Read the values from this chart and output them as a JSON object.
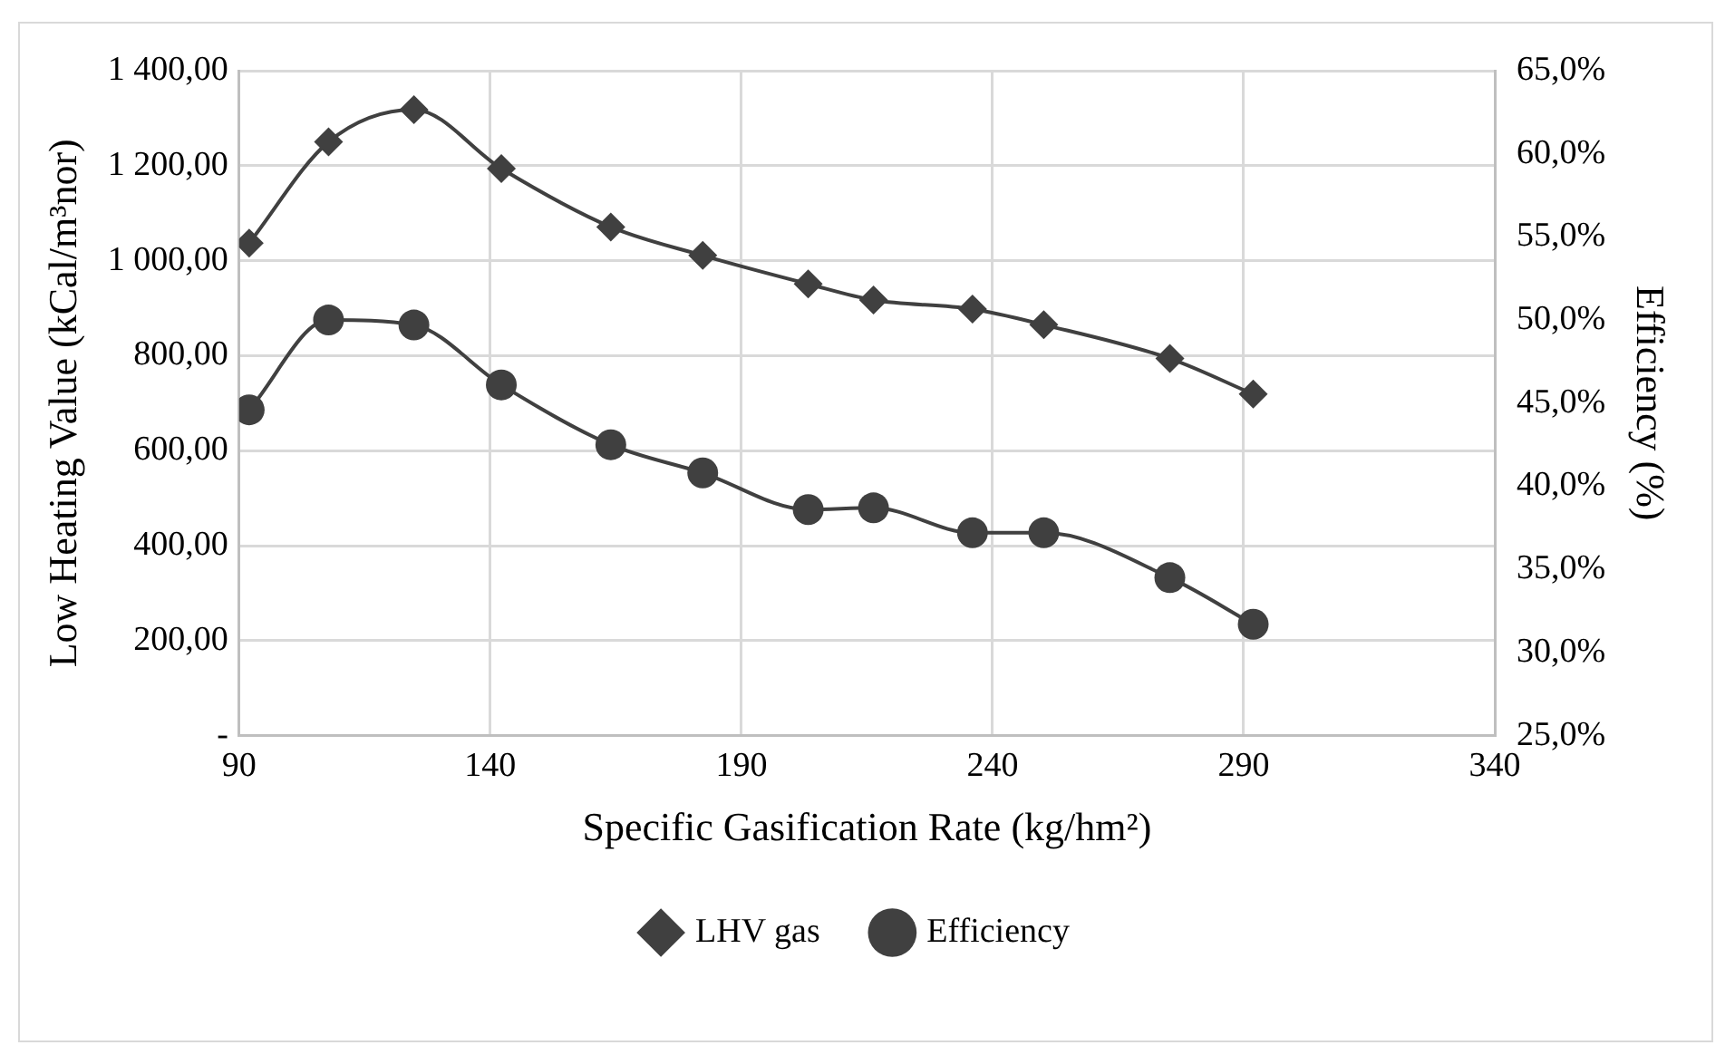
{
  "chart_data": {
    "type": "line",
    "xlabel": "Specific Gasification Rate (kg/hm²)",
    "ylabel": "Low Heating Value (kCal/m³nor)",
    "y2label": "Efficiency (%)",
    "x": [
      92,
      107.8,
      124.8,
      142.2,
      164,
      182.3,
      203.3,
      216.3,
      236,
      250.2,
      275.3,
      291.9
    ],
    "series": [
      {
        "name": "LHV gas",
        "color": "#404040",
        "marker": "diamond",
        "values": [
          1037,
          1250,
          1318,
          1194,
          1071,
          1011,
          951,
          917,
          898,
          865,
          794,
          719
        ]
      },
      {
        "name": "Efficiency",
        "color": "#404040",
        "marker": "circle",
        "axis": "y2",
        "values": [
          44.6,
          50.0,
          49.7,
          46.1,
          42.5,
          40.8,
          38.6,
          38.7,
          37.2,
          37.2,
          34.5,
          31.7
        ]
      }
    ],
    "xlim": [
      90,
      340
    ],
    "xticks": [
      90,
      140,
      190,
      240,
      290,
      340
    ],
    "ylim": [
      0,
      1400
    ],
    "yticks": [
      {
        "value": 0,
        "label": "-"
      },
      {
        "value": 200,
        "label": "200,00"
      },
      {
        "value": 400,
        "label": "400,00"
      },
      {
        "value": 600,
        "label": "600,00"
      },
      {
        "value": 800,
        "label": "800,00"
      },
      {
        "value": 1000,
        "label": "1 000,00"
      },
      {
        "value": 1200,
        "label": "1 200,00"
      },
      {
        "value": 1400,
        "label": "1 400,00"
      }
    ],
    "y2lim": [
      25,
      65
    ],
    "y2ticks": [
      {
        "value": 25,
        "label": "25,0%"
      },
      {
        "value": 30,
        "label": "30,0%"
      },
      {
        "value": 35,
        "label": "35,0%"
      },
      {
        "value": 40,
        "label": "40,0%"
      },
      {
        "value": 45,
        "label": "45,0%"
      },
      {
        "value": 50,
        "label": "50,0%"
      },
      {
        "value": 55,
        "label": "55,0%"
      },
      {
        "value": 60,
        "label": "60,0%"
      },
      {
        "value": 65,
        "label": "65,0%"
      }
    ],
    "grid": true,
    "legend": "bottom",
    "line_style": "solid"
  }
}
